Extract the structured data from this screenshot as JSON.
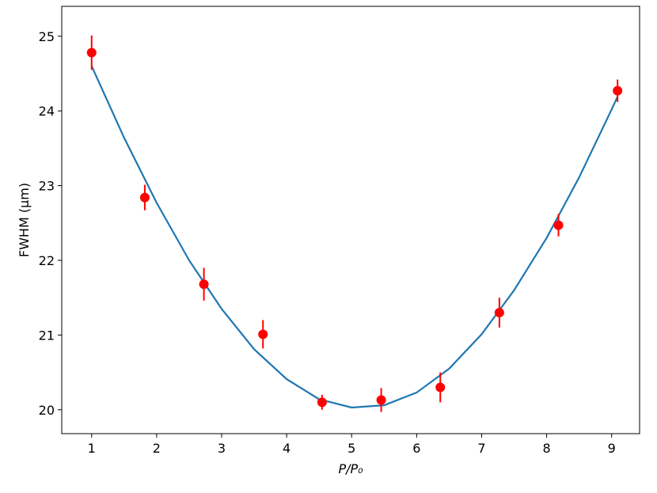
{
  "chart_data": {
    "type": "scatter",
    "x_label": "P/P₀",
    "y_label": "FWHM (μm)",
    "xlim": [
      0.54,
      9.43
    ],
    "ylim": [
      19.68,
      25.4
    ],
    "xticks": [
      1,
      2,
      3,
      4,
      5,
      6,
      7,
      8,
      9
    ],
    "yticks": [
      20,
      21,
      22,
      23,
      24,
      25
    ],
    "points": {
      "color": "#ff0000",
      "x": [
        1,
        1.818,
        2.727,
        3.636,
        4.545,
        5.455,
        6.364,
        7.273,
        8.182,
        9.091
      ],
      "values": [
        24.78,
        22.84,
        21.68,
        21.01,
        20.1,
        20.13,
        20.3,
        21.3,
        22.47,
        24.27
      ],
      "errors": [
        0.23,
        0.17,
        0.22,
        0.19,
        0.1,
        0.16,
        0.2,
        0.2,
        0.15,
        0.15
      ]
    },
    "fit": {
      "color": "#1f77b4",
      "x": [
        1,
        1.5,
        2,
        2.5,
        3,
        3.5,
        4,
        4.5,
        5,
        5.5,
        6,
        6.5,
        7,
        7.5,
        8,
        8.5,
        9,
        9.09
      ],
      "values": [
        24.6,
        23.64,
        22.77,
        22.0,
        21.35,
        20.81,
        20.41,
        20.14,
        20.03,
        20.06,
        20.23,
        20.55,
        21.01,
        21.6,
        22.3,
        23.11,
        24.02,
        24.19
      ]
    }
  }
}
